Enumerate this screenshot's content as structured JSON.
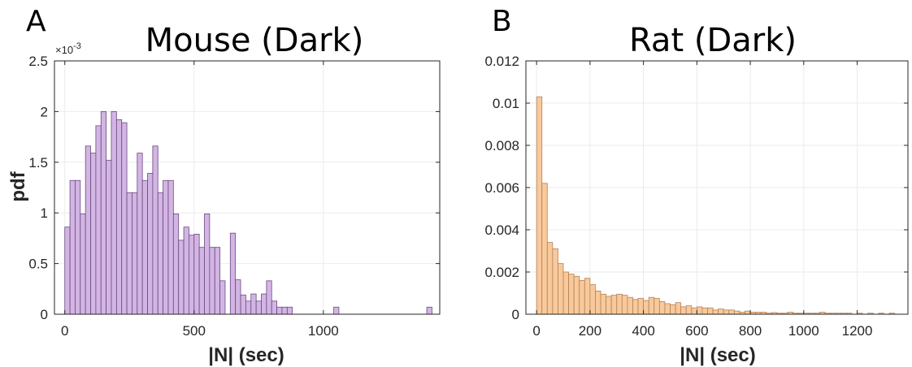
{
  "chart_data": [
    {
      "type": "bar",
      "panel": "A",
      "title": "Mouse (Dark)",
      "xlabel": "|N| (sec)",
      "ylabel": "pdf",
      "y_multiplier": "×10",
      "y_multiplier_exp": "-3",
      "xlim": [
        -40,
        1450
      ],
      "ylim": [
        0,
        2.5
      ],
      "xticks": [
        "0",
        "500",
        "1000"
      ],
      "xtick_values": [
        0,
        500,
        1000
      ],
      "yticks": [
        "0",
        "0.5",
        "1",
        "1.5",
        "2",
        "2.5"
      ],
      "ytick_values": [
        0,
        0.5,
        1,
        1.5,
        2,
        2.5
      ],
      "grid": true,
      "color": "#d3b5e4",
      "edge_color": "#6a4a80",
      "bin_start": 0,
      "bin_width": 20,
      "values": [
        0.86,
        1.32,
        1.32,
        0.99,
        1.66,
        1.59,
        1.86,
        2.0,
        1.52,
        2.0,
        1.92,
        1.89,
        1.2,
        1.2,
        1.59,
        1.32,
        1.39,
        1.66,
        1.2,
        1.32,
        1.32,
        0.99,
        0.73,
        0.86,
        0.78,
        0.79,
        0.66,
        0.99,
        0.66,
        0.66,
        0.33,
        0.0,
        0.8,
        0.34,
        0.19,
        0.13,
        0.2,
        0.13,
        0.2,
        0.33,
        0.13,
        0.07,
        0.07,
        0.07,
        0.0,
        0.0,
        0.0,
        0.0,
        0.0,
        0.0,
        0.0,
        0.0,
        0.07,
        0.0,
        0.0,
        0.0,
        0.0,
        0.0,
        0.0,
        0.0,
        0.0,
        0.0,
        0.0,
        0.0,
        0.0,
        0.0,
        0.0,
        0.0,
        0.0,
        0.0,
        0.07
      ]
    },
    {
      "type": "bar",
      "panel": "B",
      "title": "Rat (Dark)",
      "xlabel": "|N| (sec)",
      "ylabel": "",
      "xlim": [
        -40,
        1390
      ],
      "ylim": [
        0,
        0.012
      ],
      "xticks": [
        "0",
        "200",
        "400",
        "600",
        "800",
        "1000",
        "1200"
      ],
      "xtick_values": [
        0,
        200,
        400,
        600,
        800,
        1000,
        1200
      ],
      "yticks": [
        "0",
        "0.002",
        "0.004",
        "0.006",
        "0.008",
        "0.01",
        "0.012"
      ],
      "ytick_values": [
        0,
        0.002,
        0.004,
        0.006,
        0.008,
        0.01,
        0.012
      ],
      "grid": true,
      "color": "#f8c99a",
      "edge_color": "#b5825a",
      "bin_start": 0,
      "bin_width": 20,
      "values": [
        0.0103,
        0.0062,
        0.0034,
        0.0031,
        0.0024,
        0.002,
        0.0019,
        0.0018,
        0.0016,
        0.0017,
        0.0014,
        0.0011,
        0.00095,
        0.00085,
        0.0009,
        0.00095,
        0.0009,
        0.0008,
        0.0007,
        0.00075,
        0.00065,
        0.0008,
        0.00075,
        0.0006,
        0.0005,
        0.00045,
        0.00055,
        0.00035,
        0.0004,
        0.0003,
        0.00035,
        0.0003,
        0.0003,
        0.0002,
        0.00025,
        0.0002,
        0.0002,
        0.00015,
        0.0001,
        0.00015,
        0.0001,
        0.0001,
        0.0001,
        5e-05,
        8e-05,
        5e-05,
        5e-05,
        0.0001,
        5e-05,
        5e-05,
        5e-05,
        5e-05,
        5e-05,
        0.0001,
        5e-05,
        5e-05,
        5e-05,
        5e-05,
        5e-05,
        0.0,
        5e-05,
        0.0,
        5e-05,
        0.0,
        5e-05,
        0.0,
        5e-05
      ]
    }
  ]
}
